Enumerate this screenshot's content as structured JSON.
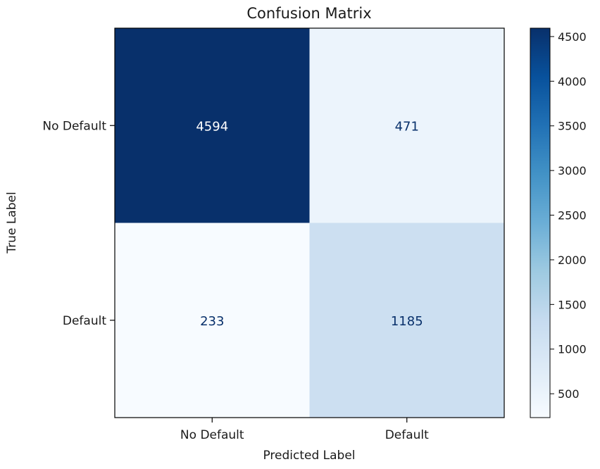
{
  "chart_data": {
    "type": "heatmap",
    "title": "Confusion Matrix",
    "xlabel": "Predicted Label",
    "ylabel": "True Label",
    "x_categories": [
      "No Default",
      "Default"
    ],
    "y_categories": [
      "No Default",
      "Default"
    ],
    "values": [
      [
        4594,
        471
      ],
      [
        233,
        1185
      ]
    ],
    "colormap": "Blues",
    "colorbar": {
      "min": 233,
      "max": 4594,
      "ticks": [
        500,
        1000,
        1500,
        2000,
        2500,
        3000,
        3500,
        4000,
        4500
      ]
    },
    "grid": false,
    "text_color_light": "#ffffff",
    "text_color_dark": "#08306b"
  }
}
